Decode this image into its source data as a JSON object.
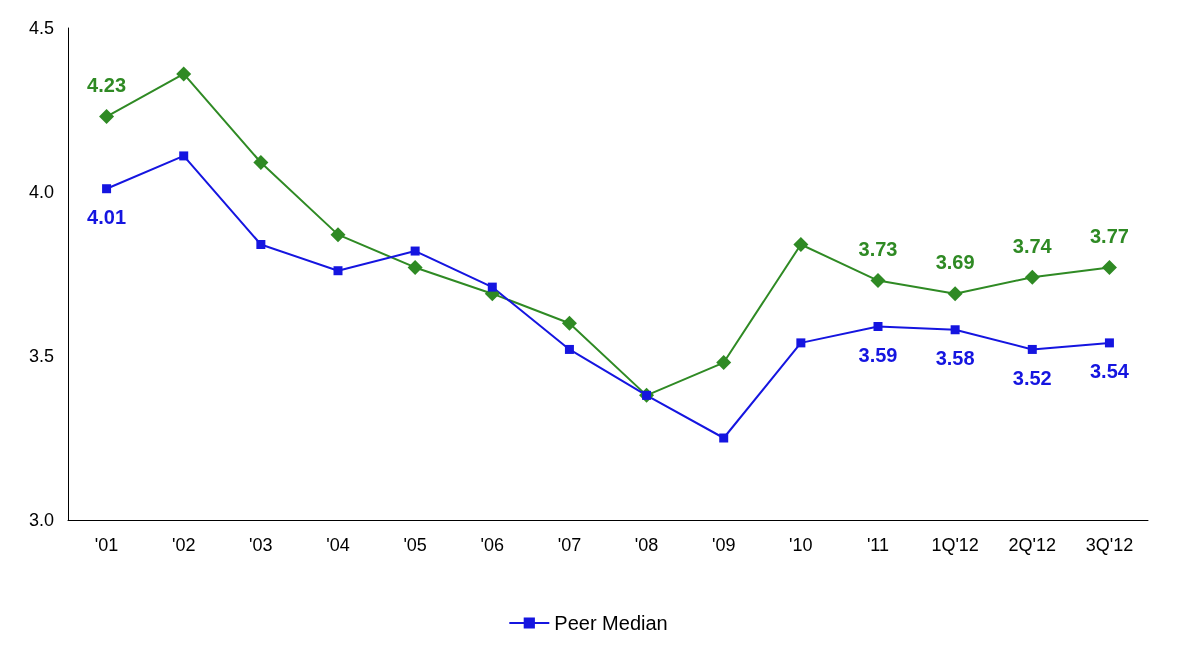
{
  "chart_data": {
    "type": "line",
    "categories": [
      "'01",
      "'02",
      "'03",
      "'04",
      "'05",
      "'06",
      "'07",
      "'08",
      "'09",
      "'10",
      "'11",
      "1Q'12",
      "2Q'12",
      "3Q'12"
    ],
    "series": [
      {
        "color": "#2f8a24",
        "marker": "diamond",
        "values": [
          4.23,
          4.36,
          4.09,
          3.87,
          3.77,
          3.69,
          3.6,
          3.38,
          3.48,
          3.84,
          3.73,
          3.69,
          3.74,
          3.77
        ],
        "value_labels": [
          "4.23",
          null,
          null,
          null,
          null,
          null,
          null,
          null,
          null,
          null,
          "3.73",
          "3.69",
          "3.74",
          "3.77"
        ]
      },
      {
        "name": "Peer Median",
        "color": "#1515e0",
        "marker": "square",
        "values": [
          4.01,
          4.11,
          3.84,
          3.76,
          3.82,
          3.71,
          3.52,
          3.38,
          3.25,
          3.54,
          3.59,
          3.58,
          3.52,
          3.54
        ],
        "value_labels": [
          "4.01",
          null,
          null,
          null,
          null,
          null,
          null,
          null,
          null,
          null,
          "3.59",
          "3.58",
          "3.52",
          "3.54"
        ]
      }
    ],
    "ylim": [
      3.0,
      4.5
    ],
    "yticks": [
      {
        "value": 3,
        "label": "3.0"
      },
      {
        "value": 3.5,
        "label": "3.5"
      },
      {
        "value": 4,
        "label": "4.0"
      },
      {
        "value": 4.5,
        "label": "4.5"
      }
    ],
    "grid": false,
    "legend": "bottom",
    "line_style": "solid"
  }
}
